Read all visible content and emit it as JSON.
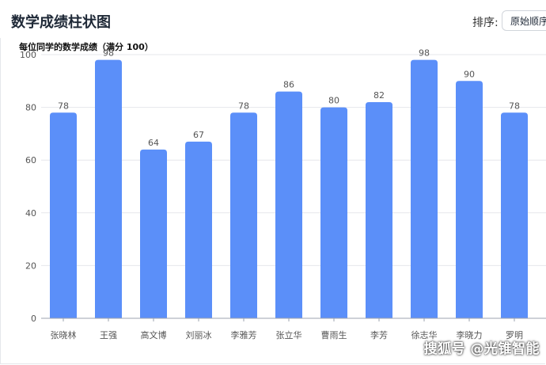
{
  "header": {
    "title": "数学成绩柱状图",
    "sort_label": "排序:",
    "sort_value": "原始顺序"
  },
  "watermark": "搜狐号 @光锥智能",
  "colors": {
    "bar": "#5b8ff9",
    "axis": "#9ca3af",
    "grid": "#e5e7eb",
    "text": "#555555"
  },
  "chart_data": {
    "type": "bar",
    "title": "每位同学的数学成绩（满分 100）",
    "categories": [
      "张晓林",
      "王强",
      "高文博",
      "刘丽冰",
      "李雅芳",
      "张立华",
      "曹雨生",
      "李芳",
      "徐志华",
      "李晓力",
      "罗明"
    ],
    "values": [
      78,
      98,
      64,
      67,
      78,
      86,
      80,
      82,
      98,
      90,
      78
    ],
    "ylim": [
      0,
      100
    ],
    "yticks": [
      0,
      20,
      40,
      60,
      80,
      100
    ],
    "xlabel": "",
    "ylabel": "",
    "grid": true,
    "data_labels": true
  }
}
